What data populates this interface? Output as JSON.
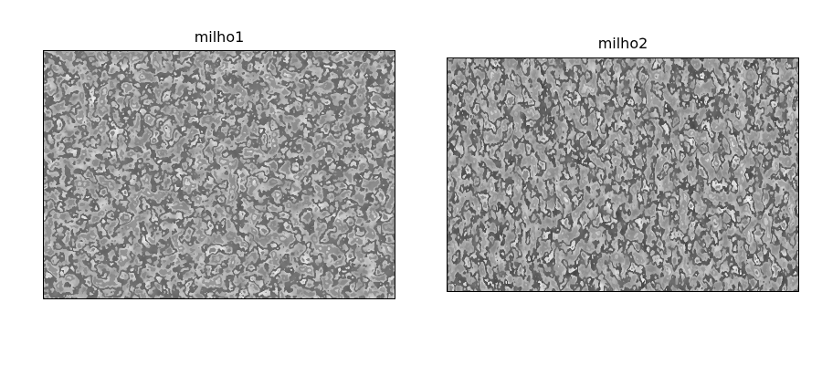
{
  "figure": {
    "panels": [
      {
        "title": "milho1",
        "image": "grayscale-edge-texture-corn-kernels"
      },
      {
        "title": "milho2",
        "image": "grayscale-edge-texture-corn-kernels"
      }
    ]
  }
}
